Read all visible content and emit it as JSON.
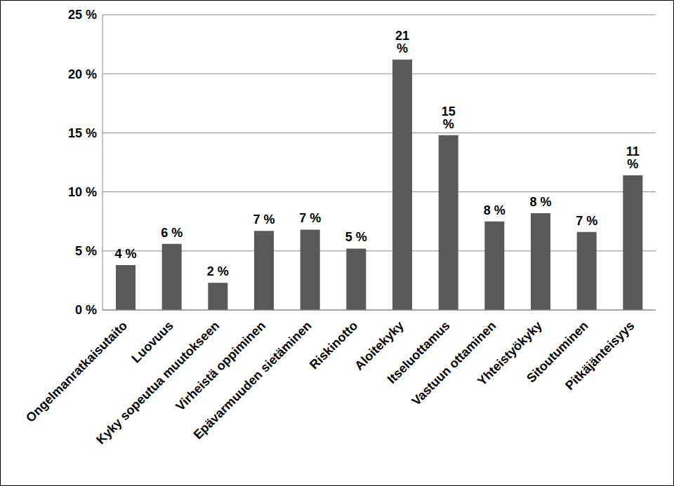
{
  "chart_data": {
    "type": "bar",
    "categories": [
      "Ongelmanratkaisutaito",
      "Luovuus",
      "Kyky sopeutua muutokseen",
      "Virheistä oppiminen",
      "Epävarmuuden sietäminen",
      "Riskinotto",
      "Aloitekyky",
      "Itseluottamus",
      "Vastuun ottaminen",
      "Yhteistyökyky",
      "Sitoutuminen",
      "Pitkäjänteisyys"
    ],
    "values": [
      3.8,
      5.6,
      2.3,
      6.7,
      6.8,
      5.2,
      21.2,
      14.8,
      7.5,
      8.2,
      6.6,
      11.4
    ],
    "value_labels": [
      "4 %",
      "6 %",
      "2 %",
      "7 %",
      "7 %",
      "5 %",
      "21 %",
      "15 %",
      "8 %",
      "8 %",
      "7 %",
      "11 %"
    ],
    "color": "#595959",
    "ylim": [
      0,
      25
    ],
    "yticks": [
      {
        "value": 0,
        "label": "0 %"
      },
      {
        "value": 5,
        "label": "5 %"
      },
      {
        "value": 10,
        "label": "10 %"
      },
      {
        "value": 15,
        "label": "15 %"
      },
      {
        "value": 20,
        "label": "20 %"
      },
      {
        "value": 25,
        "label": "25 %"
      }
    ],
    "grid": true,
    "data_labels": true
  }
}
